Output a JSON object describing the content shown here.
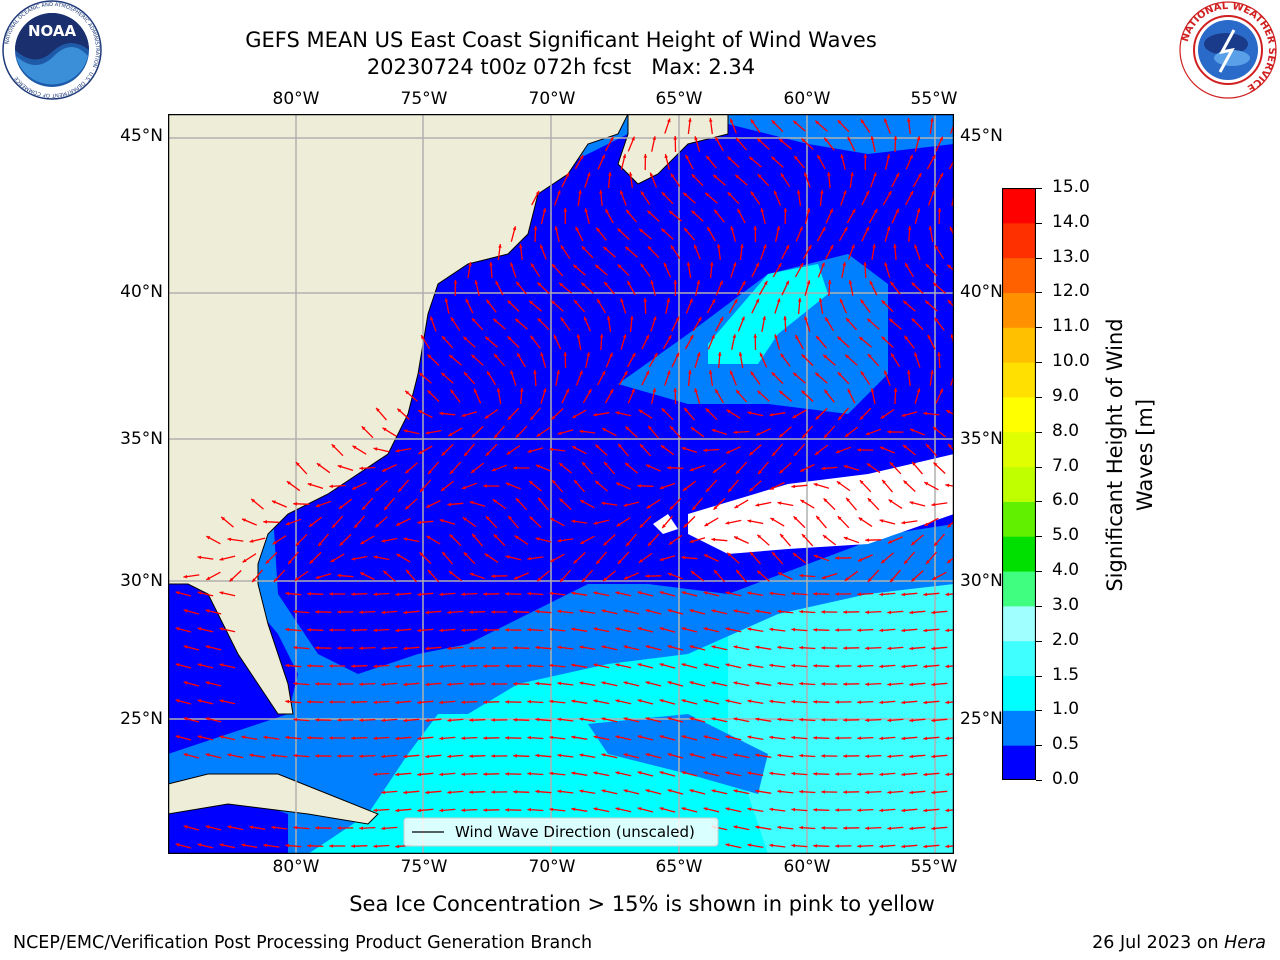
{
  "header": {
    "title_line1": "GEFS MEAN US East Coast Significant Height of Wind Waves",
    "title_line2": "20230724 t00z 072h fcst   Max: 2.34"
  },
  "logos": {
    "left": {
      "text": "NOAA",
      "ring_text": "NATIONAL OCEANIC AND ATMOSPHERIC ADMINISTRATION · U.S. DEPARTMENT OF COMMERCE"
    },
    "right": {
      "ring_text": "NATIONAL WEATHER SERVICE"
    }
  },
  "map": {
    "lon_ticks": [
      "80°W",
      "75°W",
      "70°W",
      "65°W",
      "60°W",
      "55°W"
    ],
    "lat_ticks": [
      "45°N",
      "40°N",
      "35°N",
      "30°N",
      "25°N"
    ],
    "legend": "Wind Wave Direction (unscaled)",
    "colors": {
      "land": "#eeedd8",
      "grid": "#b0b0b0",
      "arrow": "#ff0000",
      "no_data": "#ffffff"
    }
  },
  "colorbar": {
    "title_line1": "Significant Height of Wind",
    "title_line2": "Waves [m]",
    "tick_labels": [
      "15.0",
      "14.0",
      "13.0",
      "12.0",
      "11.0",
      "10.0",
      "9.0",
      "8.0",
      "7.0",
      "6.0",
      "5.0",
      "4.0",
      "3.0",
      "2.0",
      "1.5",
      "1.0",
      "0.5",
      "0.0"
    ],
    "bands": [
      {
        "from": 0.0,
        "to": 0.5,
        "color": "#0000ff"
      },
      {
        "from": 0.5,
        "to": 1.0,
        "color": "#0080ff"
      },
      {
        "from": 1.0,
        "to": 1.5,
        "color": "#00ffff"
      },
      {
        "from": 1.5,
        "to": 2.0,
        "color": "#40ffff"
      },
      {
        "from": 2.0,
        "to": 3.0,
        "color": "#a0ffff"
      },
      {
        "from": 3.0,
        "to": 4.0,
        "color": "#40ff80"
      },
      {
        "from": 4.0,
        "to": 5.0,
        "color": "#00e000"
      },
      {
        "from": 5.0,
        "to": 6.0,
        "color": "#60f000"
      },
      {
        "from": 6.0,
        "to": 7.0,
        "color": "#c0ff00"
      },
      {
        "from": 7.0,
        "to": 8.0,
        "color": "#e0ff00"
      },
      {
        "from": 8.0,
        "to": 9.0,
        "color": "#ffff00"
      },
      {
        "from": 9.0,
        "to": 10.0,
        "color": "#ffe000"
      },
      {
        "from": 10.0,
        "to": 11.0,
        "color": "#ffc000"
      },
      {
        "from": 11.0,
        "to": 12.0,
        "color": "#ff9000"
      },
      {
        "from": 12.0,
        "to": 13.0,
        "color": "#ff6000"
      },
      {
        "from": 13.0,
        "to": 14.0,
        "color": "#ff3000"
      },
      {
        "from": 14.0,
        "to": 15.0,
        "color": "#ff0000"
      }
    ]
  },
  "footer": {
    "note": "Sea Ice Concentration > 15% is shown in pink to yellow",
    "credit": "NCEP/EMC/Verification Post Processing Product Generation Branch",
    "date": "26 Jul 2023 on ",
    "host": "Hera"
  }
}
